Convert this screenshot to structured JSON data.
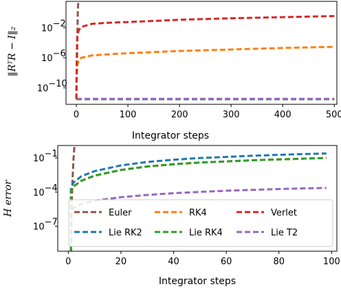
{
  "chart_data": [
    {
      "type": "line",
      "xlabel": "Integrator steps",
      "ylabel": "‖RᵀR − I‖₂",
      "yscale": "log",
      "xlim": [
        -20,
        505
      ],
      "ylim_log10": [
        -12.2,
        1.5
      ],
      "xticks": [
        0,
        100,
        200,
        300,
        400,
        500
      ],
      "xtick_labels": [
        "0",
        "100",
        "200",
        "300",
        "400",
        "500"
      ],
      "yticks_log10": [
        -2,
        -6,
        -10
      ],
      "ytick_labels": [
        "10",
        "10",
        "10"
      ],
      "ytick_exponents": [
        "−2",
        "−6",
        "−10"
      ],
      "grid": false,
      "series": [
        {
          "key": "euler",
          "color": "#8c564b",
          "x": [
            0,
            1,
            2,
            3,
            4
          ],
          "y_log10": [
            -11.5,
            -8,
            -3,
            0.5,
            1.6
          ]
        },
        {
          "key": "verlet",
          "color": "#d62728",
          "x": [
            0,
            1,
            2,
            5,
            10,
            30,
            60,
            100,
            150,
            200,
            300,
            400,
            500
          ],
          "y_log10": [
            -11.5,
            -5,
            -3,
            -2.3,
            -1.9,
            -1.5,
            -1.35,
            -1.25,
            -1.1,
            -0.95,
            -0.75,
            -0.6,
            -0.45
          ]
        },
        {
          "key": "rk4",
          "color": "#ff7f0e",
          "x": [
            0,
            1,
            2,
            5,
            10,
            30,
            60,
            100,
            150,
            200,
            300,
            400,
            500
          ],
          "y_log10": [
            -11.5,
            -8,
            -7,
            -6.3,
            -6.0,
            -5.7,
            -5.55,
            -5.4,
            -5.25,
            -5.1,
            -4.9,
            -4.7,
            -4.55
          ]
        },
        {
          "key": "lie_rk2",
          "color": "#1f77b4",
          "x": [
            0,
            500
          ],
          "y_log10": [
            -11.5,
            -11.5
          ]
        },
        {
          "key": "lie_rk4",
          "color": "#2ca02c",
          "x": [
            0,
            500
          ],
          "y_log10": [
            -11.52,
            -11.52
          ]
        },
        {
          "key": "lie_t2",
          "color": "#9467bd",
          "x": [
            0,
            500
          ],
          "y_log10": [
            -11.48,
            -11.48
          ]
        }
      ]
    },
    {
      "type": "line",
      "xlabel": "Integrator steps",
      "ylabel": "H error",
      "yscale": "log",
      "xlim": [
        -4,
        102
      ],
      "ylim_log10": [
        -9.2,
        0.1
      ],
      "xticks": [
        0,
        20,
        40,
        60,
        80,
        100
      ],
      "xtick_labels": [
        "0",
        "20",
        "40",
        "60",
        "80",
        "100"
      ],
      "yticks_log10": [
        -1,
        -4,
        -7
      ],
      "ytick_labels": [
        "10",
        "10",
        "10"
      ],
      "ytick_exponents": [
        "−1",
        "−4",
        "−7"
      ],
      "grid": false,
      "legend_position": "lower-right",
      "legend_columns": 3,
      "series": [
        {
          "key": "euler",
          "name": "Euler",
          "color": "#8c564b",
          "x": [
            1,
            1.2,
            1.6,
            2.0,
            2.4
          ],
          "y_log10": [
            -9.2,
            -6,
            -3,
            -1,
            0.2
          ]
        },
        {
          "key": "rk4",
          "name": "RK4",
          "color": "#ff7f0e",
          "x": [
            1,
            1,
            2,
            5,
            10,
            20,
            30,
            40,
            50,
            60,
            70,
            80,
            90,
            98
          ],
          "y_log10": [
            -9.2,
            -3.9,
            -3.5,
            -3.0,
            -2.55,
            -2.05,
            -1.75,
            -1.55,
            -1.4,
            -1.3,
            -1.2,
            -1.12,
            -1.05,
            -1.0
          ]
        },
        {
          "key": "verlet",
          "name": "Verlet",
          "color": "#d62728",
          "x": [
            1,
            1,
            2,
            5,
            10,
            20,
            30,
            40,
            50,
            60,
            70,
            80,
            90,
            98
          ],
          "y_log10": [
            -9.2,
            -3.9,
            -3.5,
            -3.0,
            -2.55,
            -2.05,
            -1.75,
            -1.55,
            -1.4,
            -1.3,
            -1.2,
            -1.12,
            -1.05,
            -1.0
          ]
        },
        {
          "key": "lie_rk2",
          "name": "Lie RK2",
          "color": "#1f77b4",
          "x": [
            1,
            1,
            2,
            5,
            10,
            20,
            30,
            40,
            50,
            60,
            70,
            80,
            90,
            98
          ],
          "y_log10": [
            -9.2,
            -3.6,
            -3.15,
            -2.6,
            -2.15,
            -1.65,
            -1.35,
            -1.15,
            -1.0,
            -0.9,
            -0.8,
            -0.72,
            -0.65,
            -0.6
          ]
        },
        {
          "key": "lie_rk4",
          "name": "Lie RK4",
          "color": "#2ca02c",
          "x": [
            1,
            1,
            2,
            5,
            10,
            20,
            30,
            40,
            50,
            60,
            70,
            80,
            90,
            98
          ],
          "y_log10": [
            -9.2,
            -3.9,
            -3.5,
            -3.0,
            -2.55,
            -2.05,
            -1.75,
            -1.55,
            -1.4,
            -1.3,
            -1.2,
            -1.12,
            -1.05,
            -1.0
          ]
        },
        {
          "key": "lie_t2",
          "name": "Lie T2",
          "color": "#9467bd",
          "x": [
            1,
            1,
            2,
            5,
            10,
            20,
            30,
            40,
            50,
            60,
            70,
            80,
            90,
            98
          ],
          "y_log10": [
            -9.2,
            -5.8,
            -5.4,
            -5.05,
            -4.75,
            -4.45,
            -4.25,
            -4.1,
            -3.98,
            -3.88,
            -3.8,
            -3.73,
            -3.67,
            -3.63
          ]
        }
      ]
    }
  ]
}
